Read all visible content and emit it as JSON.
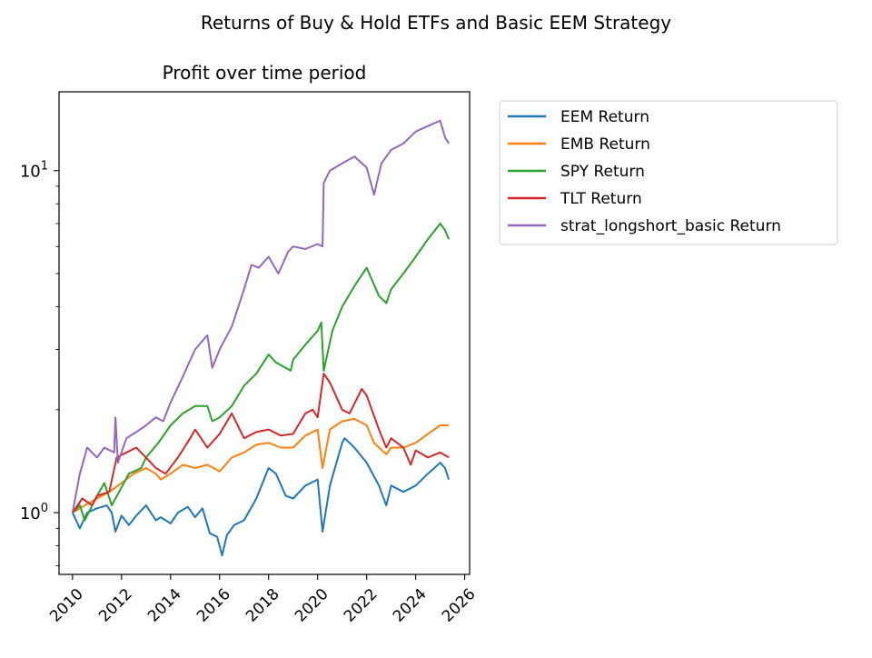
{
  "figure": {
    "suptitle": "Returns of Buy & Hold ETFs and Basic EEM Strategy"
  },
  "chart_data": {
    "type": "line",
    "title": "Profit over time period",
    "xlabel": "",
    "ylabel": "",
    "yscale": "log",
    "xlim": [
      2009.45,
      2026.2
    ],
    "ylim": [
      0.66,
      17.0
    ],
    "x_ticks": [
      "2010",
      "2012",
      "2014",
      "2016",
      "2018",
      "2020",
      "2022",
      "2024",
      "2026"
    ],
    "y_major_ticks": [
      {
        "value": 1,
        "base": "10",
        "exp": "0"
      },
      {
        "value": 10,
        "base": "10",
        "exp": "1"
      }
    ],
    "y_minor_ticks": [
      0.7,
      0.8,
      0.9,
      2,
      3,
      4,
      5,
      6,
      7,
      8,
      9
    ],
    "grid": false,
    "legend_position": "outside-right",
    "series": [
      {
        "name": "EEM Return",
        "color": "#1f77b4",
        "x": [
          2010.0,
          2010.3,
          2010.6,
          2011.0,
          2011.4,
          2011.6,
          2011.75,
          2012.0,
          2012.3,
          2012.6,
          2013.0,
          2013.4,
          2013.6,
          2014.0,
          2014.3,
          2014.7,
          2015.0,
          2015.3,
          2015.6,
          2015.9,
          2016.1,
          2016.3,
          2016.6,
          2017.0,
          2017.5,
          2018.0,
          2018.3,
          2018.7,
          2019.0,
          2019.5,
          2020.0,
          2020.2,
          2020.5,
          2021.0,
          2021.1,
          2021.5,
          2022.0,
          2022.5,
          2022.8,
          2023.0,
          2023.5,
          2024.0,
          2024.5,
          2025.0,
          2025.2,
          2025.35
        ],
        "y": [
          1.0,
          0.9,
          1.0,
          1.03,
          1.05,
          1.0,
          0.88,
          0.98,
          0.92,
          0.98,
          1.05,
          0.95,
          0.97,
          0.93,
          1.0,
          1.04,
          0.97,
          1.03,
          0.87,
          0.85,
          0.75,
          0.86,
          0.92,
          0.95,
          1.1,
          1.35,
          1.3,
          1.12,
          1.1,
          1.2,
          1.25,
          0.88,
          1.2,
          1.6,
          1.65,
          1.55,
          1.4,
          1.2,
          1.05,
          1.2,
          1.15,
          1.2,
          1.3,
          1.4,
          1.35,
          1.25
        ]
      },
      {
        "name": "EMB Return",
        "color": "#ff7f0e",
        "x": [
          2010.0,
          2010.5,
          2011.0,
          2011.5,
          2012.0,
          2012.5,
          2013.0,
          2013.4,
          2013.6,
          2014.0,
          2014.5,
          2015.0,
          2015.5,
          2016.0,
          2016.5,
          2017.0,
          2017.5,
          2018.0,
          2018.5,
          2019.0,
          2019.5,
          2020.0,
          2020.2,
          2020.5,
          2021.0,
          2021.5,
          2022.0,
          2022.3,
          2022.8,
          2023.0,
          2023.5,
          2024.0,
          2024.5,
          2025.0,
          2025.35
        ],
        "y": [
          1.0,
          1.05,
          1.1,
          1.15,
          1.22,
          1.3,
          1.35,
          1.3,
          1.25,
          1.3,
          1.38,
          1.35,
          1.38,
          1.32,
          1.45,
          1.5,
          1.58,
          1.6,
          1.55,
          1.55,
          1.68,
          1.75,
          1.35,
          1.75,
          1.85,
          1.88,
          1.8,
          1.6,
          1.48,
          1.55,
          1.55,
          1.6,
          1.7,
          1.8,
          1.8
        ]
      },
      {
        "name": "SPY Return",
        "color": "#2ca02c",
        "x": [
          2010.0,
          2010.3,
          2010.5,
          2011.0,
          2011.3,
          2011.6,
          2011.9,
          2012.3,
          2012.8,
          2013.0,
          2013.5,
          2014.0,
          2014.5,
          2015.0,
          2015.5,
          2015.7,
          2016.0,
          2016.5,
          2017.0,
          2017.5,
          2018.0,
          2018.3,
          2018.9,
          2019.0,
          2019.5,
          2020.0,
          2020.15,
          2020.25,
          2020.6,
          2021.0,
          2021.5,
          2022.0,
          2022.5,
          2022.8,
          2023.0,
          2023.5,
          2024.0,
          2024.5,
          2025.0,
          2025.2,
          2025.35
        ],
        "y": [
          1.0,
          1.05,
          0.95,
          1.12,
          1.22,
          1.05,
          1.15,
          1.3,
          1.35,
          1.45,
          1.6,
          1.8,
          1.95,
          2.05,
          2.05,
          1.85,
          1.9,
          2.05,
          2.35,
          2.55,
          2.9,
          2.75,
          2.6,
          2.8,
          3.1,
          3.4,
          3.6,
          2.6,
          3.4,
          4.0,
          4.6,
          5.2,
          4.3,
          4.1,
          4.5,
          5.0,
          5.6,
          6.3,
          7.0,
          6.7,
          6.3
        ]
      },
      {
        "name": "TLT Return",
        "color": "#d62728",
        "x": [
          2010.0,
          2010.4,
          2010.8,
          2011.0,
          2011.5,
          2011.8,
          2012.2,
          2012.6,
          2013.0,
          2013.4,
          2013.8,
          2014.3,
          2014.8,
          2015.0,
          2015.5,
          2016.0,
          2016.5,
          2017.0,
          2017.5,
          2018.0,
          2018.5,
          2019.0,
          2019.5,
          2019.8,
          2020.0,
          2020.25,
          2020.5,
          2021.0,
          2021.3,
          2021.8,
          2022.0,
          2022.5,
          2022.8,
          2023.0,
          2023.5,
          2023.8,
          2024.0,
          2024.5,
          2025.0,
          2025.35
        ],
        "y": [
          1.0,
          1.1,
          1.05,
          1.12,
          1.15,
          1.45,
          1.5,
          1.55,
          1.45,
          1.35,
          1.3,
          1.45,
          1.65,
          1.75,
          1.55,
          1.7,
          1.95,
          1.65,
          1.72,
          1.75,
          1.68,
          1.7,
          1.95,
          2.0,
          1.9,
          2.55,
          2.4,
          2.0,
          1.95,
          2.3,
          2.2,
          1.75,
          1.55,
          1.65,
          1.55,
          1.38,
          1.52,
          1.45,
          1.5,
          1.45
        ]
      },
      {
        "name": "strat_longshort_basic Return",
        "color": "#9467bd",
        "x": [
          2010.0,
          2010.3,
          2010.6,
          2011.0,
          2011.3,
          2011.7,
          2011.75,
          2011.85,
          2012.2,
          2012.6,
          2013.0,
          2013.4,
          2013.7,
          2014.0,
          2014.5,
          2015.0,
          2015.5,
          2015.7,
          2016.0,
          2016.5,
          2017.0,
          2017.3,
          2017.6,
          2018.0,
          2018.4,
          2018.8,
          2019.0,
          2019.5,
          2020.0,
          2020.2,
          2020.25,
          2020.5,
          2021.0,
          2021.5,
          2022.0,
          2022.3,
          2022.6,
          2023.0,
          2023.5,
          2024.0,
          2024.5,
          2025.0,
          2025.2,
          2025.35
        ],
        "y": [
          1.0,
          1.3,
          1.55,
          1.45,
          1.55,
          1.5,
          1.9,
          1.4,
          1.65,
          1.72,
          1.8,
          1.9,
          1.85,
          2.1,
          2.5,
          3.0,
          3.3,
          2.65,
          3.0,
          3.5,
          4.5,
          5.3,
          5.2,
          5.6,
          5.0,
          5.8,
          6.0,
          5.9,
          6.1,
          6.0,
          9.2,
          10.0,
          10.5,
          11.0,
          10.2,
          8.5,
          10.5,
          11.5,
          12.0,
          13.0,
          13.5,
          14.0,
          12.5,
          12.0
        ]
      }
    ]
  }
}
